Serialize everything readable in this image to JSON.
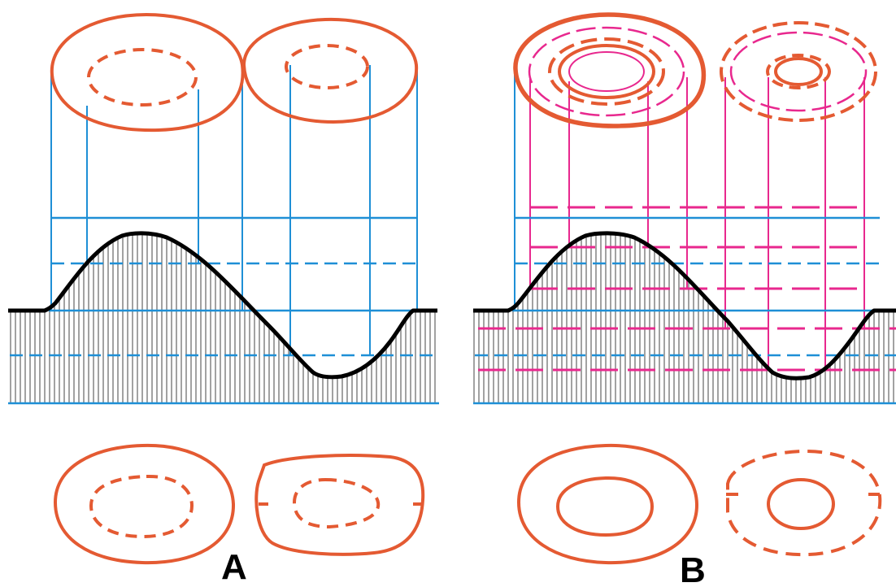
{
  "panels": [
    {
      "id": "A",
      "label": "A"
    },
    {
      "id": "B",
      "label": "B"
    }
  ],
  "colors": {
    "contour": "#e45a32",
    "projection": "#1e8fd6",
    "infill_projection": "#e8288e",
    "terrain": "#000000",
    "hatching": "#8a8a8a",
    "background": "#ffffff"
  }
}
